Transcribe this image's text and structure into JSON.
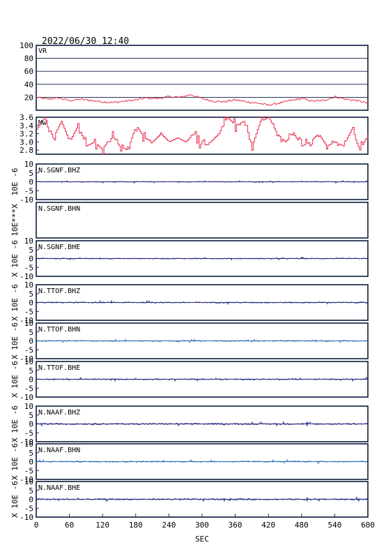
{
  "title": "2022/06/30 12:40",
  "colors": {
    "frame": "#0d1b3e",
    "vr_line": "#e8354a",
    "mw_line": "#e8183c",
    "trace_dark": "#1a1f8c",
    "trace_light": "#2d7fd6"
  },
  "chart_data": [
    {
      "type": "line",
      "label": "VR",
      "x": [
        0,
        20,
        40,
        60,
        80,
        100,
        120,
        140,
        160,
        180,
        200,
        220,
        240,
        260,
        280,
        300,
        320,
        340,
        360,
        380,
        400,
        420,
        440,
        460,
        480,
        500,
        520,
        540,
        560,
        580,
        600
      ],
      "values": [
        20,
        17,
        19,
        15,
        17,
        15,
        13,
        12,
        14,
        16,
        19,
        18,
        21,
        20,
        24,
        18,
        14,
        13,
        16,
        13,
        11,
        8,
        11,
        15,
        18,
        14,
        15,
        21,
        17,
        15,
        11
      ],
      "ylim": [
        0,
        100
      ],
      "yticks": [
        "20",
        "40",
        "60",
        "80",
        "100"
      ]
    },
    {
      "type": "line",
      "label": "Mw",
      "x": [
        0,
        15,
        30,
        45,
        60,
        75,
        90,
        105,
        120,
        135,
        150,
        165,
        180,
        195,
        210,
        225,
        240,
        255,
        270,
        285,
        300,
        315,
        330,
        345,
        360,
        375,
        390,
        405,
        420,
        435,
        450,
        465,
        480,
        495,
        510,
        525,
        540,
        555,
        570,
        585,
        600
      ],
      "values": [
        3.3,
        3.6,
        3.1,
        3.5,
        3.0,
        3.4,
        2.9,
        3.0,
        2.8,
        3.2,
        2.9,
        2.8,
        3.4,
        3.1,
        3.0,
        3.2,
        3.0,
        3.1,
        3.0,
        3.2,
        2.9,
        3.0,
        3.2,
        3.6,
        3.4,
        3.5,
        2.9,
        3.5,
        3.6,
        3.2,
        3.0,
        3.2,
        2.9,
        3.0,
        3.2,
        2.9,
        3.0,
        2.9,
        3.3,
        2.8,
        3.2
      ],
      "ylim": [
        2.7,
        3.6
      ],
      "yticks": [
        "2.8",
        "3.0",
        "3.2",
        "3.4",
        "3.6"
      ]
    },
    {
      "type": "line",
      "label": "N.SGNF.BHZ",
      "ylabel": "10E -6",
      "yticks": [
        "10",
        "5",
        "0",
        "-5",
        "-10"
      ],
      "color": "dark",
      "amplitude": 0.25,
      "spikes": []
    },
    {
      "type": "line",
      "label": "N.SGNF.BHN",
      "ylabel": "10E***X",
      "yticks": [],
      "color": "none",
      "amplitude": 0,
      "spikes": []
    },
    {
      "type": "line",
      "label": "N.SGNF.BHE",
      "ylabel": "X 10E -6",
      "yticks": [
        "10",
        "5",
        "0",
        "-5",
        "-10"
      ],
      "color": "dark",
      "amplitude": 0.3,
      "spikes": []
    },
    {
      "type": "line",
      "label": "N.TTOF.BHZ",
      "ylabel": "X 10E -6",
      "yticks": [
        "10",
        "5",
        "0",
        "-5",
        "-10"
      ],
      "color": "dark",
      "amplitude": 0.35,
      "spikes": []
    },
    {
      "type": "line",
      "label": "N.TTOF.BHN",
      "ylabel": "X 10E -6",
      "yticks": [
        "10",
        "5",
        "0",
        "-5",
        "-10"
      ],
      "color": "light",
      "amplitude": 0.35,
      "spikes": []
    },
    {
      "type": "line",
      "label": "N.TTOF.BHE",
      "ylabel": "X 10E -6",
      "yticks": [
        "10",
        "5",
        "0",
        "-5",
        "-10"
      ],
      "color": "dark",
      "amplitude": 0.35,
      "spikes": []
    },
    {
      "type": "line",
      "label": "N.NAAF.BHZ",
      "ylabel": "X 10E -6",
      "yticks": [
        "10",
        "5",
        "0",
        "-5",
        "-10"
      ],
      "color": "dark",
      "amplitude": 0.45,
      "spikes": [
        {
          "x": 490,
          "v": 1.2
        }
      ]
    },
    {
      "type": "line",
      "label": "N.NAAF.BHN",
      "ylabel": "X 10E -6",
      "yticks": [
        "10",
        "5",
        "0",
        "-5",
        "-10"
      ],
      "color": "light",
      "amplitude": 0.4,
      "spikes": []
    },
    {
      "type": "line",
      "label": "N.NAAF.BHE",
      "ylabel": "X 10E -6",
      "yticks": [
        "10",
        "5",
        "0",
        "-5",
        "-10"
      ],
      "color": "dark",
      "amplitude": 0.45,
      "spikes": [
        {
          "x": 490,
          "v": 1.1
        }
      ]
    }
  ],
  "xaxis": {
    "label": "SEC",
    "ticks": [
      "0",
      "60",
      "120",
      "180",
      "240",
      "300",
      "360",
      "420",
      "480",
      "540",
      "600"
    ],
    "xlim": [
      0,
      600
    ]
  }
}
